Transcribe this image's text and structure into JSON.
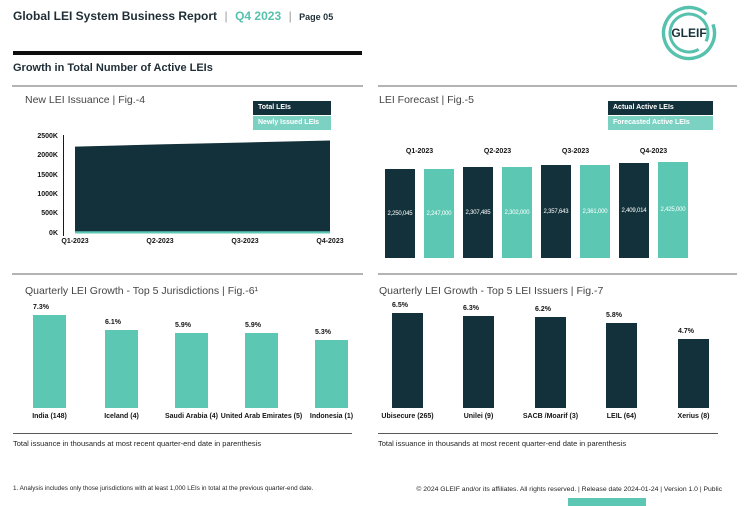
{
  "page": {
    "header": {
      "title": "Global LEI System Business Report",
      "divider": "|",
      "period": "Q4 2023",
      "page_label": "Page 05",
      "logo_text": "GLEIF"
    },
    "section_heading": "Growth in Total Number of Active LEIs",
    "notes": {
      "fig6_note": "Total issuance in thousands at most recent quarter-end date in parenthesis",
      "fig7_note": "Total issuance in thousands at most recent quarter-end date in parenthesis"
    },
    "footnote": "1. Analysis includes only those jurisdictions with at least 1,000 LEIs in total at the previous quarter-end date.",
    "copyright": "© 2024 GLEIF and/or its affiliates. All rights reserved. | Release date 2024-01-24 | Version 1.0 | Public"
  },
  "colors": {
    "dark_teal": "#13313A",
    "teal": "#5CC8B4",
    "teal_light": "#7BD2C3",
    "accent_period": "#56C2AE",
    "line_gray": "#B3B3B3"
  },
  "chart_data": [
    {
      "id": "fig4",
      "type": "area",
      "title": "New LEI Issuance | Fig.-4",
      "x": [
        "Q1-2023",
        "Q2-2023",
        "Q3-2023",
        "Q4-2023"
      ],
      "series": [
        {
          "name": "Total LEIs",
          "color": "#13313A",
          "values": [
            2250045,
            2307485,
            2357643,
            2409014
          ]
        },
        {
          "name": "Newly Issued LEIs",
          "color": "#5CC8B4",
          "values": [
            60000,
            60000,
            60000,
            60000
          ]
        }
      ],
      "ylim": [
        0,
        2500000
      ],
      "yticks": [
        "0K",
        "500K",
        "1000K",
        "1500K",
        "2000K",
        "2500K"
      ],
      "legend_position": "top-right"
    },
    {
      "id": "fig5",
      "type": "bar",
      "title": "LEI Forecast | Fig.-5",
      "categories": [
        "Q1-2023",
        "Q2-2023",
        "Q3-2023",
        "Q4-2023"
      ],
      "series": [
        {
          "name": "Actual Active LEIs",
          "color": "#13313A",
          "values": [
            2250045,
            2307485,
            2357643,
            2409014
          ]
        },
        {
          "name": "Forecasted Active LEIs",
          "color": "#5CC8B4",
          "values": [
            2247000,
            2302000,
            2361000,
            2425000
          ]
        }
      ],
      "bar_value_labels": true,
      "legend_position": "top-right"
    },
    {
      "id": "fig6",
      "type": "bar",
      "title": "Quarterly LEI Growth - Top 5 Jurisdictions | Fig.-6¹",
      "categories": [
        "India (148)",
        "Iceland (4)",
        "Saudi Arabia (4)",
        "United Arab Emirates (5)",
        "Indonesia (1)"
      ],
      "values": [
        7.3,
        6.1,
        5.9,
        5.9,
        5.3
      ],
      "value_suffix": "%",
      "bar_color": "#5CC8B4"
    },
    {
      "id": "fig7",
      "type": "bar",
      "title": "Quarterly LEI Growth - Top 5 LEI Issuers | Fig.-7",
      "categories": [
        "Ubisecure (265)",
        "Unilei (9)",
        "SACB /Moarif (3)",
        "LEIL (64)",
        "Xerius (8)"
      ],
      "values": [
        6.5,
        6.3,
        6.2,
        5.8,
        4.7
      ],
      "value_suffix": "%",
      "bar_color": "#13313A"
    }
  ]
}
